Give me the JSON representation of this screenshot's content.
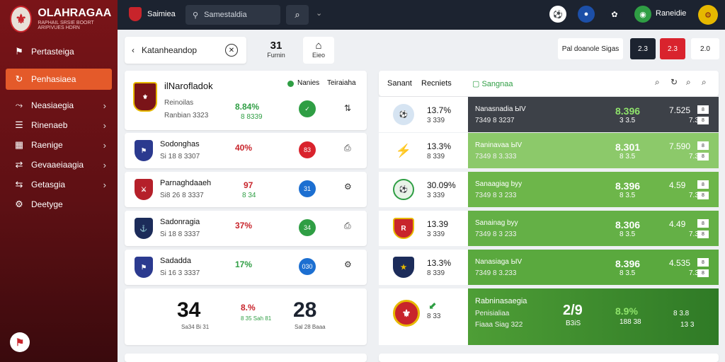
{
  "app": {
    "title": "OLAHRAGAA",
    "tagline": "RAPHAIL SRSIE BOORT ARIPIVUES HDRN"
  },
  "sidebar": {
    "items": [
      {
        "label": "Pertasteiga",
        "icon": "flag-icon"
      },
      {
        "label": "Penhasiaea",
        "icon": "refresh-icon"
      },
      {
        "label": "Neasiaegia",
        "icon": "share-icon"
      },
      {
        "label": "Rinenaeb",
        "icon": "list-icon"
      },
      {
        "label": "Raenige",
        "icon": "grid-icon"
      },
      {
        "label": "Gevaaeiaagia",
        "icon": "arrow-icon"
      },
      {
        "label": "Getasgia",
        "icon": "link-icon"
      },
      {
        "label": "Deetyge",
        "icon": "settings-icon"
      }
    ]
  },
  "topbar": {
    "crest_label": "Saimiea",
    "search_placeholder": "Samestaldia",
    "user_name": "Raneidie"
  },
  "subbar": {
    "title": "Katanheandop"
  },
  "stats": [
    {
      "value": "31",
      "label": "Furnin"
    },
    {
      "value": "⌂",
      "label": "Eieo"
    }
  ],
  "filters": [
    {
      "label": "Pal doanole Sigas"
    },
    {
      "label": "2.3"
    },
    {
      "label": "2.3"
    },
    {
      "label": "2.0"
    }
  ],
  "left_panel": {
    "header": {
      "title": "ilNarofladok",
      "col1": "Nanies",
      "col2": "Teiraiaha"
    },
    "rows": [
      {
        "name": "Reinoilas",
        "sub": "Ranbian 3323",
        "pct": "8.84%",
        "sub2": "8 8339",
        "badge": "✓",
        "badge_color": "#2f9e44",
        "crest_color": "#7a1418"
      },
      {
        "name": "Sodonghas",
        "sub": "Si 18 8 3307",
        "pct": "40%",
        "sub2": "",
        "badge": "83",
        "badge_color": "#d9232d",
        "crest_color": "#2b3a8f"
      },
      {
        "name": "Parnaghdaaeh",
        "sub": "Si8 26 8 3337",
        "pct": "97",
        "sub2": "8 34",
        "badge": "31",
        "badge_color": "#1c6fd1",
        "crest_color": "#b5202a"
      },
      {
        "name": "Sadonragia",
        "sub": "Si 18 8 3337",
        "pct": "37%",
        "sub2": "",
        "badge": "34",
        "badge_color": "#2f9e44",
        "crest_color": "#ccb04a"
      },
      {
        "name": "Sadadda",
        "sub": "Si 16 3 3337",
        "pct": "17%",
        "sub2": "",
        "badge": "030",
        "badge_color": "#1c6fd1",
        "crest_color": "#2b3a8f"
      }
    ],
    "score_card": {
      "home_score": "34",
      "home_sub": "Sa34 Bi 31",
      "away_score": "28",
      "away_sub": "Sal 28 Baaa",
      "pct": "8.%",
      "pct_sub": "8 35 Sah 81"
    }
  },
  "right_panel": {
    "header": {
      "col1": "Sanant",
      "col2": "Recniets",
      "col3": "Sangnaa"
    },
    "rows": [
      {
        "pct": "13.7%",
        "pct_sub": "3 339",
        "name": "Nanasnadia ЫV",
        "sub": "7349 8 3237",
        "val": "8.396",
        "val_sub": "3 3.5",
        "odd": "7.525",
        "box": "8",
        "odd2": "7.3",
        "box2": "8",
        "color": "#3d4148",
        "val_color": "#8fe36b",
        "logo_color": "#d6e4f2",
        "logo_text": "⚽"
      },
      {
        "pct": "13.3%",
        "pct_sub": "8 339",
        "name": "Raninavaa ЫV",
        "sub": "7349 8 3.333",
        "val": "8.301",
        "val_sub": "8 3.5",
        "odd": "7.590",
        "box": "8",
        "odd2": "7.3",
        "box2": "8",
        "color": "#8cc96a",
        "val_color": "#ffffff",
        "logo_color": "#ffffff",
        "logo_text": "⚡"
      },
      {
        "pct": "30.09%",
        "pct_sub": "3 339",
        "name": "Sanaagiag byy",
        "sub": "7349 8 3 233",
        "val": "8.396",
        "val_sub": "8 3.5",
        "odd": "4.59",
        "box": "8",
        "odd2": "7.3",
        "box2": "8",
        "color": "#6db64a",
        "val_color": "#ffffff",
        "logo_color": "#e8f3e8",
        "logo_text": "⚽"
      },
      {
        "pct": "13.39",
        "pct_sub": "3 339",
        "name": "Sanainag byy",
        "sub": "7349 8 3 233",
        "val": "8.306",
        "val_sub": "8 3.5",
        "odd": "4.49",
        "box": "8",
        "odd2": "7.3",
        "box2": "8",
        "color": "#64b046",
        "val_color": "#ffffff",
        "logo_color": "#c8242b",
        "logo_text": "R"
      },
      {
        "pct": "13.3%",
        "pct_sub": "8 339",
        "name": "Nanasiaga ЫV",
        "sub": "7349 8 3.233",
        "val": "8.396",
        "val_sub": "8 3.5",
        "odd": "4.535",
        "box": "8",
        "odd2": "7.3",
        "box2": "8",
        "color": "#5aa93e",
        "val_color": "#ffffff",
        "logo_color": "#1c2c5a",
        "logo_text": "★"
      }
    ],
    "feature": {
      "title": "Rabninasaegia",
      "sub": "Penisialiaa",
      "sub2": "Fiaaa Siag 322",
      "score": "2/9",
      "score_sub": "B3iS",
      "pct": "8.9%",
      "pct_sub": "188 38",
      "odd": "8 3.8",
      "odd2": "13 3"
    }
  }
}
